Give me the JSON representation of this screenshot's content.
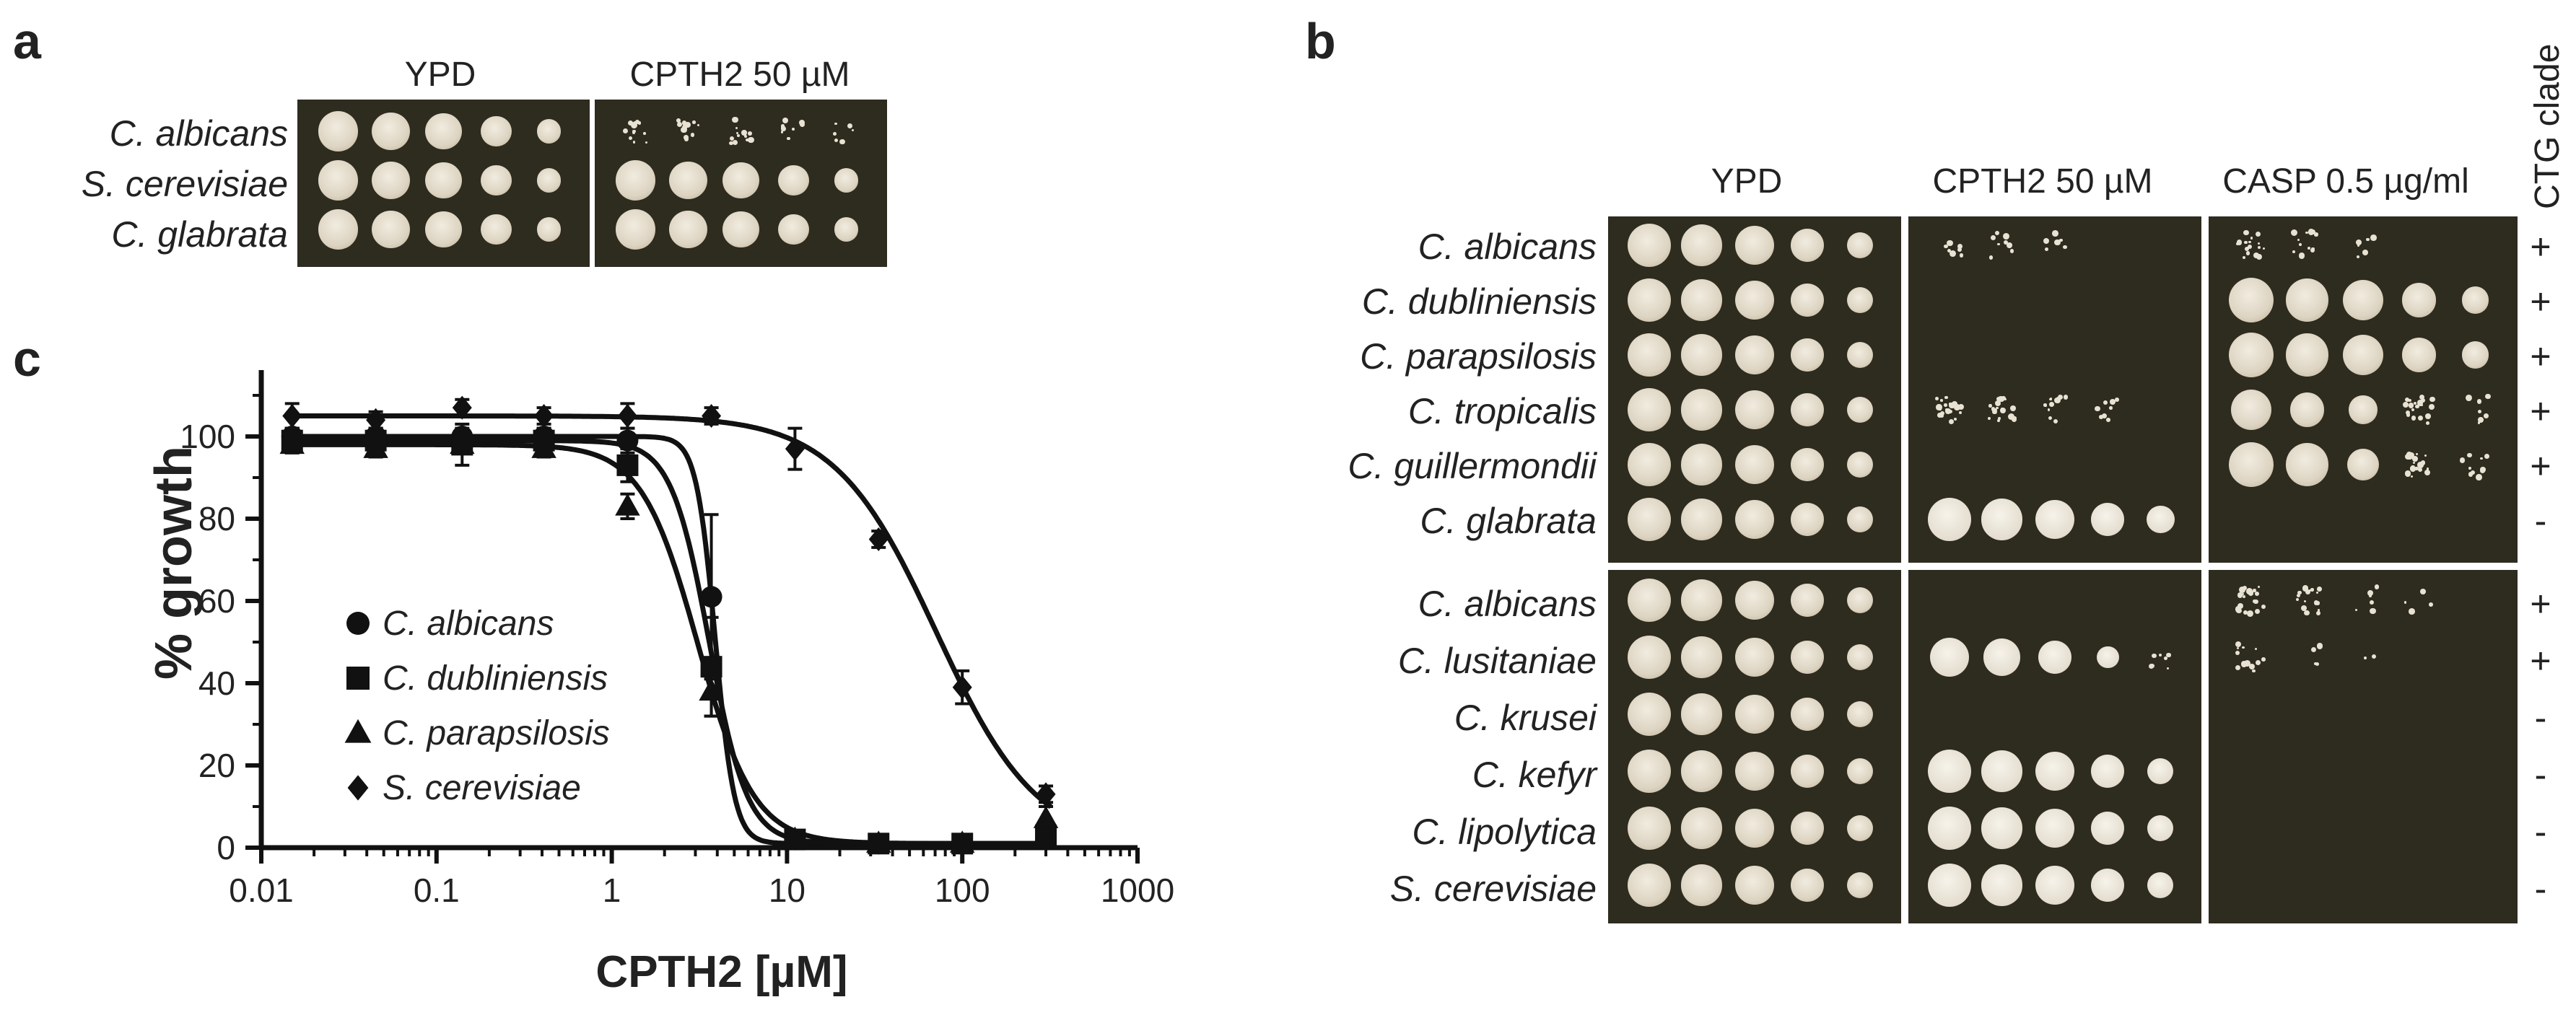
{
  "panels": {
    "a": "a",
    "b": "b",
    "c": "c"
  },
  "panel_a": {
    "columns": [
      "YPD",
      "CPTH2 50 µM"
    ],
    "rows": [
      "C. albicans",
      "S. cerevisiae",
      "C. glabrata"
    ]
  },
  "panel_b": {
    "columns": [
      "YPD",
      "CPTH2 50 µM",
      "CASP 0.5 µg/ml"
    ],
    "ctg_header": "CTG clade",
    "rows_top": [
      {
        "name": "C. albicans",
        "ctg": "+"
      },
      {
        "name": "C. dubliniensis",
        "ctg": "+"
      },
      {
        "name": "C. parapsilosis",
        "ctg": "+"
      },
      {
        "name": "C. tropicalis",
        "ctg": "+"
      },
      {
        "name": "C. guillermondii",
        "ctg": "+"
      },
      {
        "name": "C. glabrata",
        "ctg": "-"
      }
    ],
    "rows_bottom": [
      {
        "name": "C. albicans",
        "ctg": "+"
      },
      {
        "name": "C. lusitaniae",
        "ctg": "+"
      },
      {
        "name": "C. krusei",
        "ctg": "-"
      },
      {
        "name": "C. kefyr",
        "ctg": "-"
      },
      {
        "name": "C. lipolytica",
        "ctg": "-"
      },
      {
        "name": "S. cerevisiae",
        "ctg": "-"
      }
    ]
  },
  "chart_data": {
    "type": "scatter",
    "title": "",
    "xlabel": "CPTH2 [µM]",
    "ylabel": "% growth",
    "xscale": "log",
    "xlim": [
      0.01,
      1000
    ],
    "ylim": [
      0,
      110
    ],
    "x_ticks": [
      0.01,
      0.1,
      1,
      10,
      100,
      1000
    ],
    "x_tick_labels": [
      "0.01",
      "0.1",
      "1",
      "10",
      "100",
      "1000"
    ],
    "y_ticks": [
      0,
      20,
      40,
      60,
      80,
      100
    ],
    "y_tick_labels": [
      "0",
      "20",
      "40",
      "60",
      "80",
      "100"
    ],
    "legend_position": "bottom-left",
    "x": [
      0.015,
      0.045,
      0.14,
      0.41,
      1.23,
      3.7,
      11.1,
      33.3,
      100,
      300
    ],
    "series": [
      {
        "name": "C. albicans",
        "marker": "circle",
        "values": [
          100,
          100,
          100,
          100,
          99,
          61,
          2,
          1,
          1,
          2
        ],
        "err": [
          2,
          2,
          2,
          2,
          3,
          20,
          1,
          1,
          1,
          1
        ],
        "fit": {
          "top": 100,
          "bottom": 1,
          "ec50": 3.9,
          "hill": 8
        }
      },
      {
        "name": "C. dubliniensis",
        "marker": "square",
        "values": [
          99,
          99,
          98,
          99,
          93,
          44,
          2,
          1,
          1,
          3
        ],
        "err": [
          3,
          3,
          5,
          3,
          4,
          12,
          1,
          1,
          1,
          2
        ],
        "fit": {
          "top": 99,
          "bottom": 1,
          "ec50": 3.6,
          "hill": 4
        }
      },
      {
        "name": "C. parapsilosis",
        "marker": "triangle",
        "values": [
          98,
          97,
          98,
          97,
          83,
          38,
          2,
          1,
          1,
          7
        ],
        "err": [
          2,
          2,
          2,
          2,
          3,
          6,
          1,
          1,
          1,
          3
        ],
        "fit": {
          "top": 98,
          "bottom": 1,
          "ec50": 3.1,
          "hill": 2.7
        }
      },
      {
        "name": "S. cerevisiae",
        "marker": "diamond",
        "values": [
          105,
          104,
          107,
          105,
          105,
          105,
          97,
          75,
          39,
          13
        ],
        "err": [
          3,
          2,
          2,
          2,
          3,
          2,
          5,
          2,
          4,
          2
        ],
        "fit": {
          "top": 105,
          "bottom": 0,
          "ec50": 71,
          "hill": 1.5
        }
      }
    ]
  }
}
